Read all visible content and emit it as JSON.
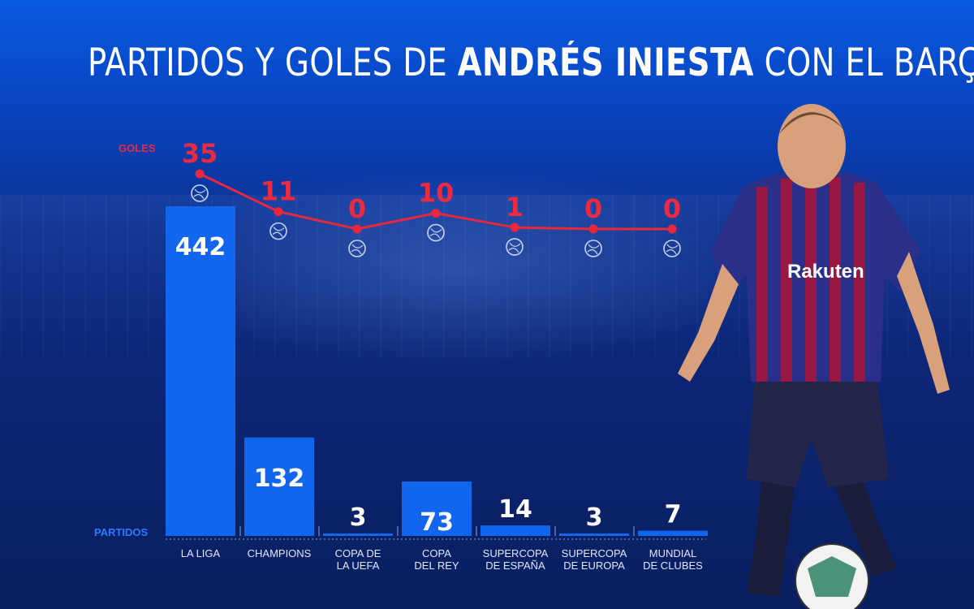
{
  "title": {
    "part1": "PARTIDOS Y GOLES DE ",
    "highlight": "ANDRÉS INIESTA",
    "part2": " CON EL BARÇA"
  },
  "colors": {
    "partidos_bar": "#1266ee",
    "goles_line": "#e8283e",
    "background_top": "#0a5be0",
    "background_bottom": "#0a1f60"
  },
  "sponsor_text": "Rakuten",
  "chart_data": {
    "type": "bar",
    "categories": [
      "LA LIGA",
      "CHAMPIONS",
      "COPA DE LA UEFA",
      "COPA DEL REY",
      "SUPERCOPA DE ESPAÑA",
      "SUPERCOPA DE EUROPA",
      "MUNDIAL DE CLUBES"
    ],
    "category_lines": [
      [
        "LA LIGA"
      ],
      [
        "CHAMPIONS"
      ],
      [
        "COPA DE",
        "LA UEFA"
      ],
      [
        "COPA",
        "DEL REY"
      ],
      [
        "SUPERCOPA",
        "DE ESPAÑA"
      ],
      [
        "SUPERCOPA",
        "DE EUROPA"
      ],
      [
        "MUNDIAL",
        "DE CLUBES"
      ]
    ],
    "series": [
      {
        "name": "PARTIDOS",
        "type": "bar",
        "values": [
          442,
          132,
          3,
          73,
          14,
          3,
          7
        ]
      },
      {
        "name": "GOLES",
        "type": "line",
        "values": [
          35,
          11,
          0,
          10,
          1,
          0,
          0
        ]
      }
    ],
    "title": "PARTIDOS Y GOLES DE ANDRÉS INIESTA CON EL BARÇA",
    "xlabel": "",
    "ylabel": "",
    "grid": false
  }
}
